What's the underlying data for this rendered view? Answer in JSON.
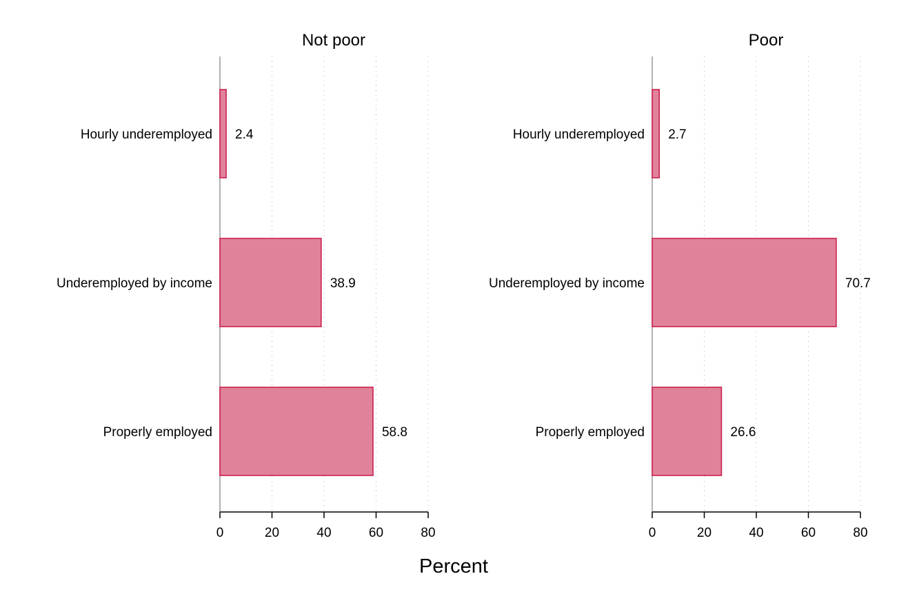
{
  "colors": {
    "bar_fill": "#e0839a",
    "bar_stroke": "#cc1f4e",
    "grid": "#b0b0b0",
    "axis": "#000000",
    "baseline": "#999999"
  },
  "chart_data": [
    {
      "type": "bar",
      "orientation": "horizontal",
      "title": "Not poor",
      "categories": [
        "Hourly underemployed",
        "Underemployed by income",
        "Properly employed"
      ],
      "values": [
        2.4,
        38.9,
        58.8
      ],
      "value_labels": [
        "2.4",
        "38.9",
        "58.8"
      ],
      "xlabel": "Percent",
      "xlim": [
        0,
        80
      ],
      "xticks": [
        0,
        20,
        40,
        60,
        80
      ],
      "grid": "vertical-dotted",
      "legend": "none"
    },
    {
      "type": "bar",
      "orientation": "horizontal",
      "title": "Poor",
      "categories": [
        "Hourly underemployed",
        "Underemployed by income",
        "Properly employed"
      ],
      "values": [
        2.7,
        70.7,
        26.6
      ],
      "value_labels": [
        "2.7",
        "70.7",
        "26.6"
      ],
      "xlabel": "Percent",
      "xlim": [
        0,
        80
      ],
      "xticks": [
        0,
        20,
        40,
        60,
        80
      ],
      "grid": "vertical-dotted",
      "legend": "none"
    }
  ],
  "shared": {
    "xlabel": "Percent"
  }
}
